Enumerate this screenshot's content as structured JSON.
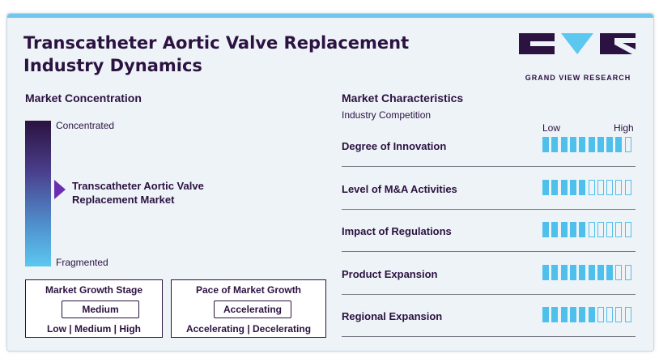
{
  "title_line1": "Transcatheter Aortic Valve Replacement",
  "title_line2": "Industry Dynamics",
  "logo": {
    "name": "GRAND VIEW RESEARCH",
    "colors": {
      "dark": "#2b1240",
      "light": "#5cc8ef"
    }
  },
  "concentration": {
    "heading": "Market Concentration",
    "top_label": "Concentrated",
    "bottom_label": "Fragmented",
    "marker_label_line1": "Transcatheter Aortic Valve",
    "marker_label_line2": "Replacement Market",
    "gradient": [
      "#2b1240",
      "#4a3f8c",
      "#4f8dcb",
      "#5cc8ef"
    ]
  },
  "growth_stage": {
    "title": "Market Growth Stage",
    "value": "Medium",
    "scale": "Low | Medium | High"
  },
  "growth_pace": {
    "title": "Pace of Market Growth",
    "value": "Accelerating",
    "scale": "Accelerating | Decelerating"
  },
  "characteristics": {
    "heading": "Market Characteristics",
    "subheading": "Industry Competition",
    "low_label": "Low",
    "high_label": "High",
    "segments_total": 10,
    "accent": "#4fc0ec",
    "rows": [
      {
        "label": "Degree of Innovation",
        "level": 9
      },
      {
        "label": "Level of M&A Activities",
        "level": 5
      },
      {
        "label": "Impact of Regulations",
        "level": 5
      },
      {
        "label": "Product Expansion",
        "level": 8
      },
      {
        "label": "Regional Expansion",
        "level": 6
      }
    ]
  }
}
